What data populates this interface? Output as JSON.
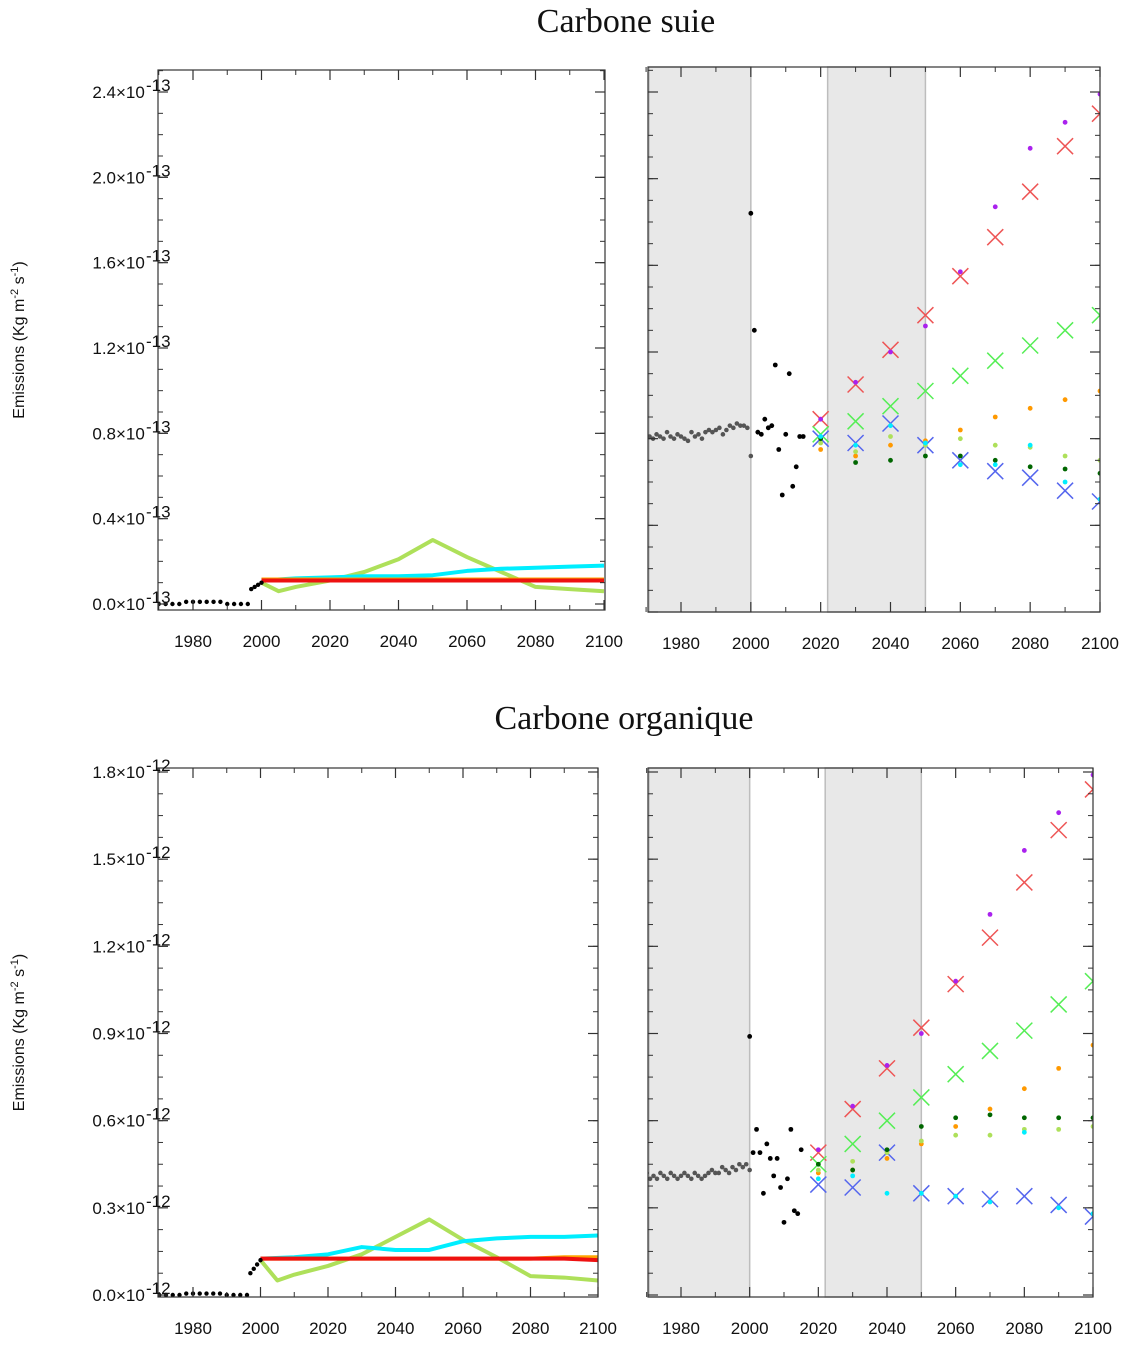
{
  "titles": [
    "Carbone suie",
    "Carbone organique"
  ],
  "chart_data": [
    {
      "panel": "left",
      "type": "line",
      "ylabel_main": "Emissions (Kg m",
      "ylabel_units": [
        "-2",
        " s",
        "-1",
        ")"
      ],
      "xlim": [
        1970,
        2100
      ],
      "ylim": [
        0,
        2.6
      ],
      "y_scale_label": "×10",
      "y_exp": "-13",
      "y_ticks": [
        0.0,
        0.4,
        0.8,
        1.2,
        1.6,
        2.0,
        2.4
      ],
      "y_tick_labels": [
        "0.0",
        "0.4",
        "0.8",
        "1.2",
        "1.6",
        "2.0",
        "2.4"
      ],
      "x_ticks": [
        1980,
        2000,
        2020,
        2040,
        2060,
        2080,
        2100
      ],
      "x_tick_labels": [
        "1980",
        "2000",
        "2020",
        "2040",
        "2060",
        "2080",
        "2100"
      ],
      "historical_points": {
        "color": "#000000",
        "x": [
          1970,
          1972,
          1974,
          1976,
          1978,
          1980,
          1982,
          1984,
          1986,
          1988,
          1990,
          1992,
          1994,
          1996,
          1997,
          1998,
          1999,
          2000
        ],
        "y": [
          0.0,
          0.0,
          0.0,
          0.0,
          0.01,
          0.01,
          0.01,
          0.01,
          0.01,
          0.01,
          0.0,
          0.0,
          0.0,
          0.0,
          0.07,
          0.08,
          0.09,
          0.1
        ]
      },
      "series": [
        {
          "color": "#aee05a",
          "x": [
            2000,
            2005,
            2010,
            2020,
            2030,
            2040,
            2050,
            2060,
            2070,
            2080,
            2090,
            2100
          ],
          "y": [
            0.1,
            0.06,
            0.08,
            0.11,
            0.15,
            0.21,
            0.3,
            0.22,
            0.15,
            0.08,
            0.07,
            0.06
          ]
        },
        {
          "color": "#00eeff",
          "x": [
            2000,
            2010,
            2020,
            2030,
            2040,
            2050,
            2060,
            2070,
            2080,
            2090,
            2100
          ],
          "y": [
            0.11,
            0.12,
            0.125,
            0.13,
            0.13,
            0.135,
            0.155,
            0.165,
            0.17,
            0.175,
            0.18
          ]
        },
        {
          "color": "#ffa500",
          "x": [
            2000,
            2010,
            2020,
            2030,
            2040,
            2050,
            2060,
            2070,
            2080,
            2090,
            2100
          ],
          "y": [
            0.115,
            0.115,
            0.115,
            0.115,
            0.115,
            0.115,
            0.115,
            0.115,
            0.115,
            0.115,
            0.115
          ]
        },
        {
          "color": "#ee1111",
          "x": [
            2000,
            2010,
            2020,
            2030,
            2040,
            2050,
            2060,
            2070,
            2080,
            2090,
            2100
          ],
          "y": [
            0.11,
            0.11,
            0.11,
            0.11,
            0.11,
            0.11,
            0.11,
            0.11,
            0.11,
            0.11,
            0.11
          ]
        }
      ]
    },
    {
      "panel": "right",
      "type": "scatter",
      "xlim": [
        1970,
        2100
      ],
      "ylim": [
        0,
        2.6
      ],
      "x_ticks": [
        1980,
        2000,
        2020,
        2040,
        2060,
        2080,
        2100
      ],
      "x_tick_labels": [
        "1980",
        "2000",
        "2020",
        "2040",
        "2060",
        "2080",
        "2100"
      ],
      "y_ticks": [
        0.0,
        0.4,
        0.8,
        1.2,
        1.6,
        2.0,
        2.4
      ],
      "shaded_x_ranges": [
        [
          1970,
          2000
        ],
        [
          2022,
          2050
        ]
      ],
      "gray_points": {
        "color": "#555555",
        "x": [
          1971,
          1972,
          1973,
          1974,
          1975,
          1976,
          1977,
          1978,
          1979,
          1980,
          1981,
          1982,
          1983,
          1984,
          1985,
          1986,
          1987,
          1988,
          1989,
          1990,
          1991,
          1992,
          1993,
          1994,
          1995,
          1996,
          1997,
          1998,
          1999,
          2000
        ],
        "y": [
          0.81,
          0.8,
          0.82,
          0.81,
          0.8,
          0.83,
          0.81,
          0.8,
          0.82,
          0.81,
          0.8,
          0.79,
          0.83,
          0.81,
          0.82,
          0.8,
          0.83,
          0.84,
          0.83,
          0.84,
          0.85,
          0.82,
          0.84,
          0.86,
          0.85,
          0.87,
          0.86,
          0.86,
          0.85,
          0.72
        ]
      },
      "black_points": {
        "color": "#000000",
        "x": [
          2000,
          2001,
          2002,
          2003,
          2004,
          2005,
          2006,
          2007,
          2008,
          2009,
          2010,
          2011,
          2012,
          2013,
          2014,
          2015
        ],
        "y": [
          1.84,
          1.3,
          0.83,
          0.82,
          0.89,
          0.85,
          0.86,
          1.14,
          0.75,
          0.54,
          0.82,
          1.1,
          0.58,
          0.67,
          0.81,
          0.81
        ]
      },
      "x_markers": [
        {
          "color": "#ee5555",
          "x": [
            2020,
            2030,
            2040,
            2050,
            2060,
            2070,
            2080,
            2090,
            2100
          ],
          "y": [
            0.89,
            1.05,
            1.21,
            1.37,
            1.55,
            1.73,
            1.94,
            2.15,
            2.3
          ]
        },
        {
          "color": "#55ee55",
          "x": [
            2020,
            2030,
            2040,
            2050,
            2060,
            2070,
            2080,
            2090,
            2100
          ],
          "y": [
            0.82,
            0.88,
            0.95,
            1.02,
            1.09,
            1.16,
            1.23,
            1.3,
            1.37
          ]
        },
        {
          "color": "#5566ee",
          "x": [
            2020,
            2030,
            2040,
            2050,
            2060,
            2070,
            2080,
            2090,
            2100
          ],
          "y": [
            0.8,
            0.78,
            0.87,
            0.77,
            0.7,
            0.65,
            0.62,
            0.56,
            0.51
          ]
        }
      ],
      "dot_series": [
        {
          "color": "#aa22ee",
          "x": [
            2020,
            2030,
            2040,
            2050,
            2060,
            2070,
            2080,
            2090,
            2100
          ],
          "y": [
            0.89,
            1.06,
            1.2,
            1.32,
            1.57,
            1.87,
            2.14,
            2.26,
            2.39
          ]
        },
        {
          "color": "#ff9900",
          "x": [
            2020,
            2030,
            2040,
            2050,
            2060,
            2070,
            2080,
            2090,
            2100
          ],
          "y": [
            0.75,
            0.72,
            0.77,
            0.79,
            0.84,
            0.9,
            0.94,
            0.98,
            1.02
          ]
        },
        {
          "color": "#aee05a",
          "x": [
            2020,
            2030,
            2040,
            2050,
            2060,
            2070,
            2080,
            2090,
            2100
          ],
          "y": [
            0.78,
            0.74,
            0.81,
            0.77,
            0.8,
            0.77,
            0.76,
            0.72,
            0.7
          ]
        },
        {
          "color": "#006600",
          "x": [
            2020,
            2030,
            2040,
            2050,
            2060,
            2070,
            2080,
            2090,
            2100
          ],
          "y": [
            0.8,
            0.69,
            0.7,
            0.72,
            0.72,
            0.7,
            0.67,
            0.66,
            0.64
          ]
        },
        {
          "color": "#00eeff",
          "x": [
            2020,
            2030,
            2040,
            2050,
            2060,
            2070,
            2080,
            2090,
            2100
          ],
          "y": [
            0.81,
            0.77,
            0.86,
            0.78,
            0.68,
            0.68,
            0.77,
            0.6,
            0.52
          ]
        }
      ]
    },
    {
      "panel": "left",
      "type": "line",
      "ylabel_main": "Emissions (Kg m",
      "ylabel_units": [
        "-2",
        " s",
        "-1",
        ")"
      ],
      "xlim": [
        1970,
        2100
      ],
      "ylim": [
        0,
        1.8
      ],
      "y_scale_label": "×10",
      "y_exp": "-12",
      "y_ticks": [
        0.0,
        0.3,
        0.6,
        0.9,
        1.2,
        1.5,
        1.8
      ],
      "y_tick_labels": [
        "0.0",
        "0.3",
        "0.6",
        "0.9",
        "1.2",
        "1.5",
        "1.8"
      ],
      "x_ticks": [
        1980,
        2000,
        2020,
        2040,
        2060,
        2080,
        2100
      ],
      "x_tick_labels": [
        "1980",
        "2000",
        "2020",
        "2040",
        "2060",
        "2080",
        "2100"
      ],
      "historical_points": {
        "color": "#000000",
        "x": [
          1970,
          1972,
          1974,
          1976,
          1978,
          1980,
          1982,
          1984,
          1986,
          1988,
          1990,
          1992,
          1994,
          1996,
          1997,
          1998,
          1999,
          2000
        ],
        "y": [
          0.0,
          0.0,
          0.0,
          0.0,
          0.005,
          0.005,
          0.005,
          0.005,
          0.005,
          0.005,
          0.0,
          0.0,
          0.0,
          0.0,
          0.075,
          0.09,
          0.105,
          0.12
        ]
      },
      "series": [
        {
          "color": "#aee05a",
          "x": [
            2000,
            2005,
            2010,
            2020,
            2030,
            2040,
            2050,
            2060,
            2070,
            2080,
            2090,
            2100
          ],
          "y": [
            0.12,
            0.05,
            0.07,
            0.1,
            0.14,
            0.2,
            0.26,
            0.19,
            0.13,
            0.065,
            0.06,
            0.05
          ]
        },
        {
          "color": "#00eeff",
          "x": [
            2000,
            2010,
            2020,
            2030,
            2040,
            2050,
            2060,
            2070,
            2080,
            2090,
            2100
          ],
          "y": [
            0.125,
            0.13,
            0.14,
            0.165,
            0.155,
            0.155,
            0.185,
            0.195,
            0.2,
            0.2,
            0.205
          ]
        },
        {
          "color": "#ffa500",
          "x": [
            2000,
            2010,
            2020,
            2030,
            2040,
            2050,
            2060,
            2070,
            2080,
            2090,
            2100
          ],
          "y": [
            0.125,
            0.125,
            0.125,
            0.125,
            0.125,
            0.125,
            0.125,
            0.125,
            0.125,
            0.13,
            0.13
          ]
        },
        {
          "color": "#ee1111",
          "x": [
            2000,
            2010,
            2020,
            2030,
            2040,
            2050,
            2060,
            2070,
            2080,
            2090,
            2100
          ],
          "y": [
            0.125,
            0.125,
            0.125,
            0.125,
            0.125,
            0.125,
            0.125,
            0.125,
            0.125,
            0.125,
            0.12
          ]
        }
      ]
    },
    {
      "panel": "right",
      "type": "scatter",
      "xlim": [
        1970,
        2100
      ],
      "ylim": [
        0,
        1.8
      ],
      "x_ticks": [
        1980,
        2000,
        2020,
        2040,
        2060,
        2080,
        2100
      ],
      "x_tick_labels": [
        "1980",
        "2000",
        "2020",
        "2040",
        "2060",
        "2080",
        "2100"
      ],
      "y_ticks": [
        0.0,
        0.3,
        0.6,
        0.9,
        1.2,
        1.5,
        1.8
      ],
      "shaded_x_ranges": [
        [
          1970,
          2000
        ],
        [
          2022,
          2050
        ]
      ],
      "gray_points": {
        "color": "#555555",
        "x": [
          1970,
          1971,
          1972,
          1973,
          1974,
          1975,
          1976,
          1977,
          1978,
          1979,
          1980,
          1981,
          1982,
          1983,
          1984,
          1985,
          1986,
          1987,
          1988,
          1989,
          1990,
          1991,
          1992,
          1993,
          1994,
          1995,
          1996,
          1997,
          1998,
          1999,
          2000
        ],
        "y": [
          0.42,
          0.4,
          0.41,
          0.4,
          0.42,
          0.41,
          0.4,
          0.42,
          0.41,
          0.4,
          0.41,
          0.42,
          0.41,
          0.4,
          0.42,
          0.41,
          0.4,
          0.41,
          0.42,
          0.43,
          0.42,
          0.42,
          0.44,
          0.43,
          0.42,
          0.44,
          0.43,
          0.45,
          0.44,
          0.45,
          0.43
        ]
      },
      "black_points": {
        "color": "#000000",
        "x": [
          2000,
          2001,
          2002,
          2003,
          2004,
          2005,
          2006,
          2007,
          2008,
          2009,
          2010,
          2011,
          2012,
          2013,
          2014,
          2015
        ],
        "y": [
          0.89,
          0.49,
          0.57,
          0.49,
          0.35,
          0.52,
          0.47,
          0.41,
          0.47,
          0.37,
          0.25,
          0.4,
          0.57,
          0.29,
          0.28,
          0.5
        ]
      },
      "x_markers": [
        {
          "color": "#ee5555",
          "x": [
            2020,
            2030,
            2040,
            2050,
            2060,
            2070,
            2080,
            2090,
            2100
          ],
          "y": [
            0.49,
            0.64,
            0.78,
            0.92,
            1.07,
            1.23,
            1.42,
            1.6,
            1.74
          ]
        },
        {
          "color": "#55ee55",
          "x": [
            2020,
            2030,
            2040,
            2050,
            2060,
            2070,
            2080,
            2090,
            2100
          ],
          "y": [
            0.45,
            0.52,
            0.6,
            0.68,
            0.76,
            0.84,
            0.91,
            1.0,
            1.08
          ]
        },
        {
          "color": "#5566ee",
          "x": [
            2020,
            2030,
            2040,
            2050,
            2060,
            2070,
            2080,
            2090,
            2100
          ],
          "y": [
            0.38,
            0.37,
            0.49,
            0.35,
            0.34,
            0.33,
            0.34,
            0.31,
            0.27
          ]
        }
      ],
      "dot_series": [
        {
          "color": "#aa22ee",
          "x": [
            2020,
            2030,
            2040,
            2050,
            2060,
            2070,
            2080,
            2090,
            2100
          ],
          "y": [
            0.5,
            0.65,
            0.79,
            0.9,
            1.08,
            1.31,
            1.53,
            1.66,
            1.79
          ]
        },
        {
          "color": "#ff9900",
          "x": [
            2020,
            2030,
            2040,
            2050,
            2060,
            2070,
            2080,
            2090,
            2100
          ],
          "y": [
            0.42,
            0.43,
            0.47,
            0.52,
            0.58,
            0.64,
            0.71,
            0.78,
            0.86
          ]
        },
        {
          "color": "#aee05a",
          "x": [
            2020,
            2030,
            2040,
            2050,
            2060,
            2070,
            2080,
            2090,
            2100
          ],
          "y": [
            0.43,
            0.46,
            0.49,
            0.53,
            0.55,
            0.55,
            0.57,
            0.57,
            0.58
          ]
        },
        {
          "color": "#006600",
          "x": [
            2020,
            2030,
            2040,
            2050,
            2060,
            2070,
            2080,
            2090,
            2100
          ],
          "y": [
            0.45,
            0.43,
            0.5,
            0.58,
            0.61,
            0.62,
            0.61,
            0.61,
            0.61
          ]
        },
        {
          "color": "#00eeff",
          "x": [
            2020,
            2030,
            2040,
            2050,
            2060,
            2070,
            2080,
            2090,
            2100
          ],
          "y": [
            0.4,
            0.41,
            0.35,
            0.35,
            0.34,
            0.32,
            0.56,
            0.3,
            0.28
          ]
        }
      ]
    }
  ]
}
